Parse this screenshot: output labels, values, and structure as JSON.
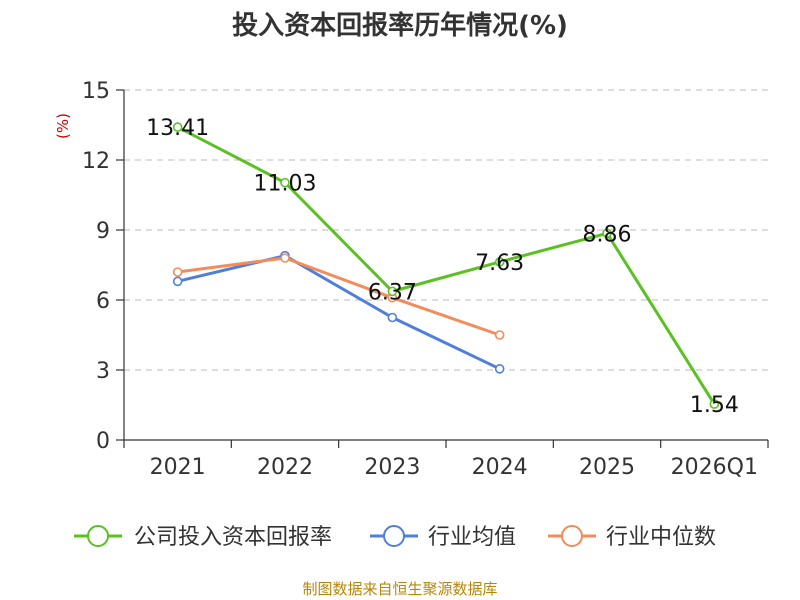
{
  "chart_data": {
    "type": "line",
    "title": "投入资本回报率历年情况(%)",
    "ylabel": "(%)",
    "xlabel": "",
    "categories": [
      "2021",
      "2022",
      "2023",
      "2024",
      "2025",
      "2026Q1"
    ],
    "ylim": [
      0,
      15
    ],
    "yticks": [
      "0",
      "3",
      "6",
      "9",
      "12",
      "15"
    ],
    "grid": true,
    "legend_position": "bottom",
    "series": [
      {
        "name": "公司投入资本回报率",
        "color": "#5ac122",
        "values": [
          13.41,
          11.03,
          6.37,
          7.63,
          8.86,
          1.54
        ],
        "labels": [
          "13.41",
          "11.03",
          "6.37",
          "7.63",
          "8.86",
          "1.54"
        ]
      },
      {
        "name": "行业均值",
        "color": "#4f7fd9",
        "values": [
          6.8,
          7.9,
          5.25,
          3.05,
          null,
          null
        ]
      },
      {
        "name": "行业中位数",
        "color": "#f28c5a",
        "values": [
          7.2,
          7.8,
          6.1,
          4.5,
          null,
          null
        ]
      }
    ]
  },
  "source": "制图数据来自恒生聚源数据库"
}
